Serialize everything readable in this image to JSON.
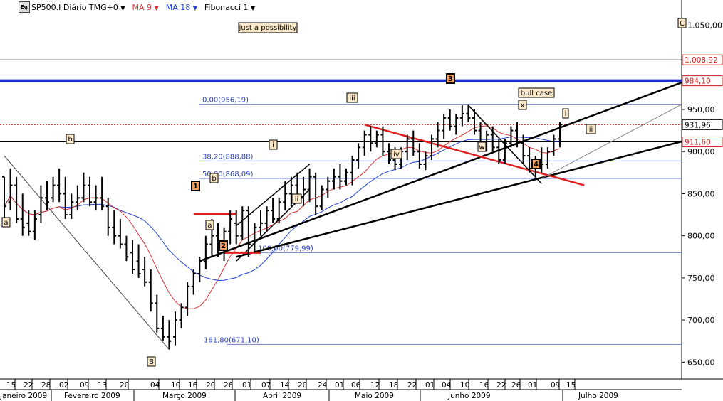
{
  "toolbar": {
    "logo_text": "Eq",
    "symbol": "SP500.I Diário TMG+0",
    "ma9": "MA 9",
    "ma18": "MA 18",
    "fib": "Fibonacci 1",
    "ma9_color": "#e03030",
    "ma18_color": "#2040d0"
  },
  "chart_data": {
    "type": "bar",
    "subtype": "ohlc",
    "title": "",
    "xlabel": "",
    "ylabel": "",
    "ylim": [
      630,
      1080
    ],
    "y_ticks": [
      "1.050,00",
      "950,00",
      "900,00",
      "850,00",
      "800,00",
      "750,00",
      "700,00",
      "650,00"
    ],
    "y_tick_values": [
      1050,
      950,
      900,
      850,
      800,
      750,
      700,
      650
    ],
    "x_day_ticks": [
      "15",
      "22",
      "28",
      "02",
      "09",
      "13",
      "20",
      "04",
      "10",
      "16",
      "20",
      "26",
      "01",
      "07",
      "14",
      "20",
      "24",
      "01",
      "06",
      "12",
      "18",
      "22",
      "01",
      "04",
      "10",
      "16",
      "22",
      "26",
      "01",
      "09",
      "15"
    ],
    "x_month_labels": [
      "Janeiro 2009",
      "Fevereiro 2009",
      "Março 2009",
      "Abril 2009",
      "Maio 2009",
      "Junho 2009",
      "Julho 2009"
    ],
    "price_labels": [
      {
        "text": "1.008,92",
        "value": 1008.92,
        "color": "#d02020"
      },
      {
        "text": "984,10",
        "value": 984.1,
        "color": "#d02020"
      },
      {
        "text": "931,96",
        "value": 931.96,
        "color": "#000000"
      },
      {
        "text": "911,60",
        "value": 911.6,
        "color": "#d02020"
      }
    ],
    "fib_levels": [
      {
        "text": "0,00(956,19)",
        "value": 956.19
      },
      {
        "text": "38,20(888,88)",
        "value": 888.88
      },
      {
        "text": "50,00(868,09)",
        "value": 868.09
      },
      {
        "text": "100,00(779,99)",
        "value": 779.99
      },
      {
        "text": "161,80(671,10)",
        "value": 671.1
      }
    ],
    "horizontal_lines": [
      {
        "value": 1008.92,
        "color": "#000000",
        "style": "solid"
      },
      {
        "value": 984.1,
        "color": "#1a2fd0",
        "style": "thick"
      },
      {
        "value": 931.96,
        "color": "#d02020",
        "style": "dotted"
      },
      {
        "value": 911.6,
        "color": "#000000",
        "style": "solid"
      }
    ],
    "annotations": [
      {
        "text": "just a possibility",
        "style": "box"
      },
      {
        "text": "bull case",
        "style": "box"
      },
      {
        "text": "1",
        "style": "dark"
      },
      {
        "text": "2",
        "style": "dark"
      },
      {
        "text": "3",
        "style": "dark"
      },
      {
        "text": "4",
        "style": "dark"
      },
      {
        "text": "a",
        "style": "light"
      },
      {
        "text": "b",
        "style": "light"
      },
      {
        "text": "B",
        "style": "light"
      },
      {
        "text": "b",
        "style": "light"
      },
      {
        "text": "a",
        "style": "light"
      },
      {
        "text": "i",
        "style": "light"
      },
      {
        "text": "ii",
        "style": "light"
      },
      {
        "text": "iii",
        "style": "light"
      },
      {
        "text": "iv",
        "style": "light"
      },
      {
        "text": "w",
        "style": "light"
      },
      {
        "text": "x",
        "style": "light"
      },
      {
        "text": "i",
        "style": "light"
      },
      {
        "text": "ii",
        "style": "light"
      },
      {
        "text": "C",
        "style": "light"
      }
    ],
    "ohlc": [
      [
        870,
        870,
        820,
        835
      ],
      [
        840,
        880,
        830,
        860
      ],
      [
        860,
        870,
        815,
        820
      ],
      [
        820,
        850,
        800,
        810
      ],
      [
        815,
        830,
        800,
        805
      ],
      [
        805,
        830,
        795,
        820
      ],
      [
        825,
        860,
        815,
        845
      ],
      [
        845,
        865,
        830,
        840
      ],
      [
        845,
        870,
        840,
        860
      ],
      [
        860,
        880,
        840,
        850
      ],
      [
        850,
        870,
        820,
        825
      ],
      [
        825,
        850,
        820,
        840
      ],
      [
        840,
        860,
        830,
        845
      ],
      [
        845,
        875,
        840,
        860
      ],
      [
        860,
        870,
        835,
        840
      ],
      [
        840,
        860,
        830,
        845
      ],
      [
        845,
        870,
        830,
        835
      ],
      [
        835,
        845,
        800,
        810
      ],
      [
        810,
        830,
        790,
        800
      ],
      [
        800,
        820,
        785,
        790
      ],
      [
        790,
        800,
        770,
        775
      ],
      [
        780,
        795,
        755,
        760
      ],
      [
        770,
        790,
        750,
        755
      ],
      [
        760,
        775,
        740,
        745
      ],
      [
        745,
        760,
        710,
        720
      ],
      [
        720,
        730,
        685,
        690
      ],
      [
        690,
        705,
        675,
        680
      ],
      [
        680,
        700,
        665,
        675
      ],
      [
        680,
        710,
        670,
        700
      ],
      [
        700,
        720,
        690,
        715
      ],
      [
        715,
        745,
        705,
        740
      ],
      [
        740,
        760,
        730,
        755
      ],
      [
        755,
        775,
        745,
        770
      ],
      [
        770,
        800,
        760,
        790
      ],
      [
        790,
        820,
        775,
        800
      ],
      [
        800,
        815,
        775,
        785
      ],
      [
        785,
        810,
        770,
        805
      ],
      [
        805,
        830,
        790,
        820
      ],
      [
        815,
        830,
        790,
        800
      ],
      [
        800,
        835,
        795,
        830
      ],
      [
        830,
        835,
        775,
        790
      ],
      [
        790,
        815,
        780,
        810
      ],
      [
        810,
        830,
        800,
        815
      ],
      [
        815,
        835,
        805,
        830
      ],
      [
        830,
        845,
        815,
        820
      ],
      [
        820,
        845,
        815,
        840
      ],
      [
        840,
        865,
        830,
        850
      ],
      [
        850,
        870,
        835,
        860
      ],
      [
        860,
        875,
        840,
        845
      ],
      [
        845,
        870,
        835,
        855
      ],
      [
        855,
        880,
        840,
        870
      ],
      [
        870,
        875,
        825,
        835
      ],
      [
        835,
        860,
        830,
        855
      ],
      [
        855,
        870,
        845,
        865
      ],
      [
        865,
        880,
        855,
        870
      ],
      [
        870,
        885,
        855,
        865
      ],
      [
        865,
        880,
        860,
        875
      ],
      [
        875,
        895,
        860,
        890
      ],
      [
        890,
        910,
        880,
        905
      ],
      [
        905,
        925,
        895,
        920
      ],
      [
        920,
        930,
        900,
        910
      ],
      [
        910,
        925,
        905,
        920
      ],
      [
        920,
        930,
        895,
        900
      ],
      [
        900,
        910,
        885,
        890
      ],
      [
        890,
        905,
        878,
        885
      ],
      [
        885,
        905,
        880,
        900
      ],
      [
        900,
        920,
        890,
        915
      ],
      [
        915,
        925,
        895,
        900
      ],
      [
        900,
        910,
        880,
        885
      ],
      [
        885,
        900,
        878,
        895
      ],
      [
        895,
        920,
        890,
        915
      ],
      [
        915,
        935,
        905,
        925
      ],
      [
        925,
        945,
        915,
        940
      ],
      [
        940,
        950,
        925,
        930
      ],
      [
        930,
        945,
        920,
        940
      ],
      [
        940,
        955,
        930,
        945
      ],
      [
        945,
        956,
        935,
        940
      ],
      [
        940,
        950,
        920,
        925
      ],
      [
        925,
        935,
        905,
        910
      ],
      [
        910,
        925,
        900,
        920
      ],
      [
        920,
        930,
        900,
        905
      ],
      [
        905,
        915,
        885,
        890
      ],
      [
        890,
        915,
        885,
        910
      ],
      [
        910,
        930,
        905,
        925
      ],
      [
        925,
        935,
        905,
        910
      ],
      [
        910,
        920,
        885,
        895
      ],
      [
        895,
        905,
        875,
        880
      ],
      [
        880,
        895,
        870,
        890
      ],
      [
        890,
        905,
        875,
        885
      ],
      [
        885,
        905,
        880,
        900
      ],
      [
        900,
        920,
        895,
        915
      ],
      [
        915,
        935,
        905,
        932
      ]
    ]
  }
}
